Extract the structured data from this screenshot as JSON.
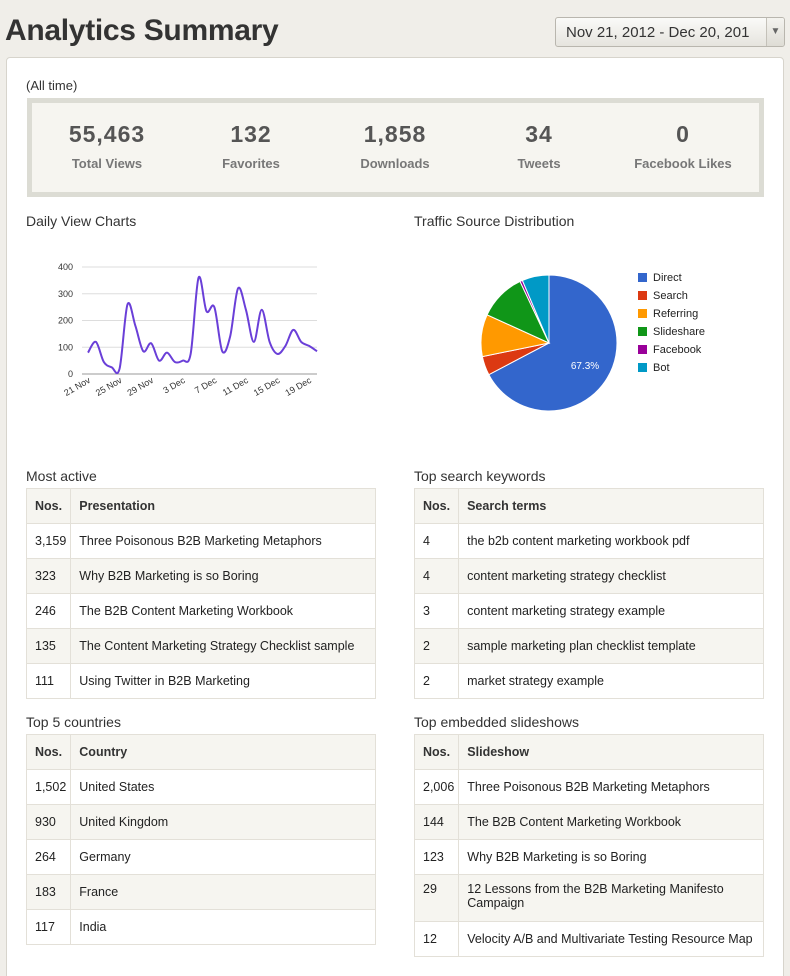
{
  "header": {
    "title": "Analytics Summary",
    "date_range": "Nov 21, 2012 - Dec 20, 201"
  },
  "summary": {
    "period": "(All time)",
    "stats": [
      {
        "value": "55,463",
        "label": "Total Views"
      },
      {
        "value": "132",
        "label": "Favorites"
      },
      {
        "value": "1,858",
        "label": "Downloads"
      },
      {
        "value": "34",
        "label": "Tweets"
      },
      {
        "value": "0",
        "label": "Facebook Likes"
      }
    ]
  },
  "daily_chart": {
    "title": "Daily View Charts"
  },
  "traffic": {
    "title": "Traffic Source Distribution"
  },
  "chart_data": [
    {
      "type": "line",
      "y_ticks": [
        "400",
        "300",
        "200",
        "100",
        "0"
      ],
      "x_ticks": [
        "21 Nov",
        "25 Nov",
        "29 Nov",
        "3 Dec",
        "7 Dec",
        "11 Dec",
        "15 Dec",
        "19 Dec"
      ],
      "ylim": [
        0,
        400
      ],
      "line_color": "#6a3fd8",
      "x": [
        "21 Nov",
        "22 Nov",
        "23 Nov",
        "24 Nov",
        "25 Nov",
        "26 Nov",
        "27 Nov",
        "28 Nov",
        "29 Nov",
        "30 Nov",
        "1 Dec",
        "2 Dec",
        "3 Dec",
        "4 Dec",
        "5 Dec",
        "6 Dec",
        "7 Dec",
        "8 Dec",
        "9 Dec",
        "10 Dec",
        "11 Dec",
        "12 Dec",
        "13 Dec",
        "14 Dec",
        "15 Dec",
        "16 Dec",
        "17 Dec",
        "18 Dec",
        "19 Dec",
        "20 Dec"
      ],
      "values": [
        80,
        120,
        45,
        25,
        20,
        260,
        180,
        85,
        115,
        50,
        80,
        45,
        50,
        75,
        360,
        235,
        250,
        85,
        140,
        320,
        240,
        120,
        240,
        120,
        75,
        105,
        165,
        120,
        105,
        85
      ]
    },
    {
      "type": "pie",
      "center_label": "67.3%",
      "slices": [
        {
          "name": "Direct",
          "value": 67.3,
          "color": "#3366cc"
        },
        {
          "name": "Search",
          "value": 4.5,
          "color": "#dc3912"
        },
        {
          "name": "Referring",
          "value": 10.0,
          "color": "#ff9900"
        },
        {
          "name": "Slideshare",
          "value": 11.2,
          "color": "#109618"
        },
        {
          "name": "Facebook",
          "value": 0.6,
          "color": "#990099"
        },
        {
          "name": "Bot",
          "value": 6.4,
          "color": "#0099c6"
        }
      ]
    }
  ],
  "most_active": {
    "title": "Most active",
    "col_n": "Nos.",
    "col_name": "Presentation",
    "rows": [
      {
        "n": "3,159",
        "name": "Three Poisonous B2B Marketing Metaphors"
      },
      {
        "n": "323",
        "name": "Why B2B Marketing is so Boring"
      },
      {
        "n": "246",
        "name": "The B2B Content Marketing Workbook"
      },
      {
        "n": "135",
        "name": "The Content Marketing Strategy Checklist sample"
      },
      {
        "n": "111",
        "name": "Using Twitter in B2B Marketing"
      }
    ]
  },
  "keywords": {
    "title": "Top search keywords",
    "col_n": "Nos.",
    "col_name": "Search terms",
    "rows": [
      {
        "n": "4",
        "name": "the b2b content marketing workbook pdf"
      },
      {
        "n": "4",
        "name": "content marketing strategy checklist"
      },
      {
        "n": "3",
        "name": "content marketing strategy example"
      },
      {
        "n": "2",
        "name": "sample marketing plan checklist template"
      },
      {
        "n": "2",
        "name": "market strategy example"
      }
    ]
  },
  "countries": {
    "title": "Top 5 countries",
    "col_n": "Nos.",
    "col_name": "Country",
    "rows": [
      {
        "n": "1,502",
        "name": "United States"
      },
      {
        "n": "930",
        "name": "United Kingdom"
      },
      {
        "n": "264",
        "name": "Germany"
      },
      {
        "n": "183",
        "name": "France"
      },
      {
        "n": "117",
        "name": "India"
      }
    ]
  },
  "embedded": {
    "title": "Top embedded slideshows",
    "col_n": "Nos.",
    "col_name": "Slideshow",
    "rows": [
      {
        "n": "2,006",
        "name": "Three Poisonous B2B Marketing Metaphors"
      },
      {
        "n": "144",
        "name": "The B2B Content Marketing Workbook"
      },
      {
        "n": "123",
        "name": "Why B2B Marketing is so Boring"
      },
      {
        "n": "29",
        "name": "12 Lessons from the B2B Marketing Manifesto Campaign"
      },
      {
        "n": "12",
        "name": "Velocity A/B and Multivariate Testing Resource Map"
      }
    ]
  }
}
